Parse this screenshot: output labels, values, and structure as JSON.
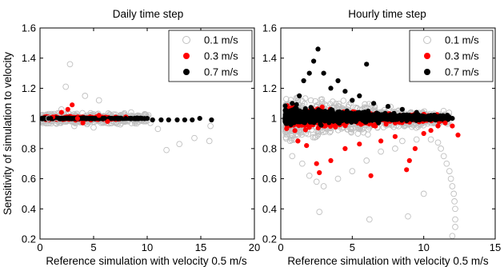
{
  "chart_data": [
    {
      "type": "scatter",
      "title": "Daily time step",
      "xlabel": "Reference simulation with velocity 0.5 m/s",
      "ylabel": "Sensitivity of simulation to velocity",
      "xlim": [
        0,
        20
      ],
      "ylim": [
        0.2,
        1.6
      ],
      "xticks": [
        "0",
        "5",
        "10",
        "15",
        "20"
      ],
      "yticks": [
        "0.2",
        "0.4",
        "0.6",
        "0.8",
        "1",
        "1.2",
        "1.4",
        "1.6"
      ],
      "legend_position": "top-right",
      "grid": false,
      "series": [
        {
          "name": "0.1 m/s",
          "marker": "open-circle",
          "color": "#c0c0c0",
          "points": [
            [
              0.8,
              1.0
            ],
            [
              1.5,
              0.97
            ],
            [
              2.0,
              1.06
            ],
            [
              2.4,
              1.21
            ],
            [
              2.8,
              1.36
            ],
            [
              3.2,
              0.95
            ],
            [
              4.2,
              1.15
            ],
            [
              5.0,
              0.94
            ],
            [
              5.5,
              1.12
            ],
            [
              6.2,
              0.97
            ],
            [
              7.5,
              0.96
            ],
            [
              8.5,
              1.04
            ],
            [
              10.3,
              0.97
            ],
            [
              11.0,
              0.93
            ],
            [
              11.8,
              0.79
            ],
            [
              13.0,
              0.83
            ],
            [
              14.4,
              0.87
            ],
            [
              15.8,
              0.85
            ],
            [
              15.9,
              0.95
            ]
          ]
        },
        {
          "name": "0.3 m/s",
          "marker": "filled-circle",
          "color": "#ff0000",
          "points": [
            [
              1.2,
              1.01
            ],
            [
              2.0,
              1.04
            ],
            [
              2.6,
              1.06
            ],
            [
              3.0,
              1.09
            ],
            [
              3.5,
              1.0
            ],
            [
              4.0,
              0.97
            ],
            [
              5.5,
              1.02
            ],
            [
              6.3,
              0.98
            ],
            [
              8.0,
              1.01
            ]
          ]
        },
        {
          "name": "0.7 m/s",
          "marker": "filled-circle",
          "color": "#000000",
          "points": [
            [
              0.3,
              1.0
            ],
            [
              1.0,
              1.0
            ],
            [
              2.0,
              1.0
            ],
            [
              3.0,
              1.0
            ],
            [
              4.0,
              1.0
            ],
            [
              5.0,
              1.0
            ],
            [
              6.0,
              1.0
            ],
            [
              7.0,
              1.0
            ],
            [
              8.0,
              1.0
            ],
            [
              9.0,
              1.0
            ],
            [
              10.0,
              1.0
            ],
            [
              10.5,
              0.99
            ],
            [
              11.3,
              0.99
            ],
            [
              12.0,
              0.99
            ],
            [
              12.8,
              0.99
            ],
            [
              13.5,
              0.99
            ],
            [
              14.2,
              0.99
            ],
            [
              14.9,
              1.0
            ],
            [
              16.0,
              0.99
            ]
          ]
        }
      ]
    },
    {
      "type": "scatter",
      "title": "Hourly time step",
      "xlabel": "Reference simulation with velocity 0.5 m/s",
      "ylabel": "",
      "xlim": [
        0,
        15
      ],
      "ylim": [
        0.2,
        1.6
      ],
      "xticks": [
        "0",
        "5",
        "10",
        "15"
      ],
      "yticks": [
        "0.2",
        "0.4",
        "0.6",
        "0.8",
        "1",
        "1.2",
        "1.4",
        "1.6"
      ],
      "legend_position": "top-right",
      "grid": false,
      "series": [
        {
          "name": "0.1 m/s",
          "marker": "open-circle",
          "color": "#c0c0c0",
          "points": [
            [
              0.8,
              0.75
            ],
            [
              1.5,
              0.7
            ],
            [
              2.0,
              0.62
            ],
            [
              2.5,
              0.58
            ],
            [
              3.0,
              0.55
            ],
            [
              2.7,
              0.38
            ],
            [
              4.0,
              0.6
            ],
            [
              5.0,
              0.65
            ],
            [
              6.2,
              0.33
            ],
            [
              6.0,
              0.72
            ],
            [
              7.0,
              0.78
            ],
            [
              8.0,
              0.8
            ],
            [
              8.5,
              0.85
            ],
            [
              9.5,
              0.86
            ],
            [
              10.5,
              0.86
            ],
            [
              11.0,
              0.84
            ],
            [
              11.2,
              0.8
            ],
            [
              11.4,
              0.75
            ],
            [
              11.6,
              0.7
            ],
            [
              11.8,
              0.65
            ],
            [
              11.9,
              0.6
            ],
            [
              12.0,
              0.55
            ],
            [
              12.1,
              0.5
            ],
            [
              12.15,
              0.45
            ],
            [
              12.2,
              0.4
            ],
            [
              12.2,
              0.33
            ],
            [
              12.2,
              0.28
            ],
            [
              12.0,
              0.22
            ],
            [
              8.9,
              0.35
            ],
            [
              10.0,
              0.5
            ]
          ]
        },
        {
          "name": "0.3 m/s",
          "marker": "filled-circle",
          "color": "#ff0000",
          "points": [
            [
              1.2,
              0.85
            ],
            [
              1.8,
              0.82
            ],
            [
              2.5,
              0.7
            ],
            [
              2.7,
              0.64
            ],
            [
              3.5,
              0.72
            ],
            [
              4.5,
              0.8
            ],
            [
              5.5,
              0.83
            ],
            [
              6.3,
              0.62
            ],
            [
              7.0,
              0.85
            ],
            [
              8.0,
              0.88
            ],
            [
              8.8,
              0.66
            ],
            [
              9.0,
              0.72
            ],
            [
              9.4,
              0.8
            ],
            [
              10.0,
              0.9
            ],
            [
              10.5,
              0.92
            ],
            [
              11.0,
              0.95
            ],
            [
              11.5,
              0.97
            ],
            [
              12.0,
              0.95
            ],
            [
              12.4,
              0.89
            ]
          ]
        },
        {
          "name": "0.7 m/s",
          "marker": "filled-circle",
          "color": "#000000",
          "points": [
            [
              0.8,
              1.1
            ],
            [
              1.3,
              1.15
            ],
            [
              1.6,
              1.25
            ],
            [
              2.0,
              1.3
            ],
            [
              2.3,
              1.38
            ],
            [
              2.6,
              1.46
            ],
            [
              3.0,
              1.3
            ],
            [
              3.5,
              1.2
            ],
            [
              4.0,
              1.25
            ],
            [
              4.5,
              1.18
            ],
            [
              5.0,
              1.12
            ],
            [
              5.5,
              1.15
            ],
            [
              6.0,
              1.36
            ],
            [
              6.5,
              1.1
            ],
            [
              7.5,
              1.08
            ],
            [
              8.5,
              1.06
            ],
            [
              9.5,
              1.04
            ],
            [
              10.5,
              1.02
            ],
            [
              11.5,
              1.01
            ],
            [
              12.0,
              1.0
            ]
          ]
        }
      ]
    }
  ]
}
